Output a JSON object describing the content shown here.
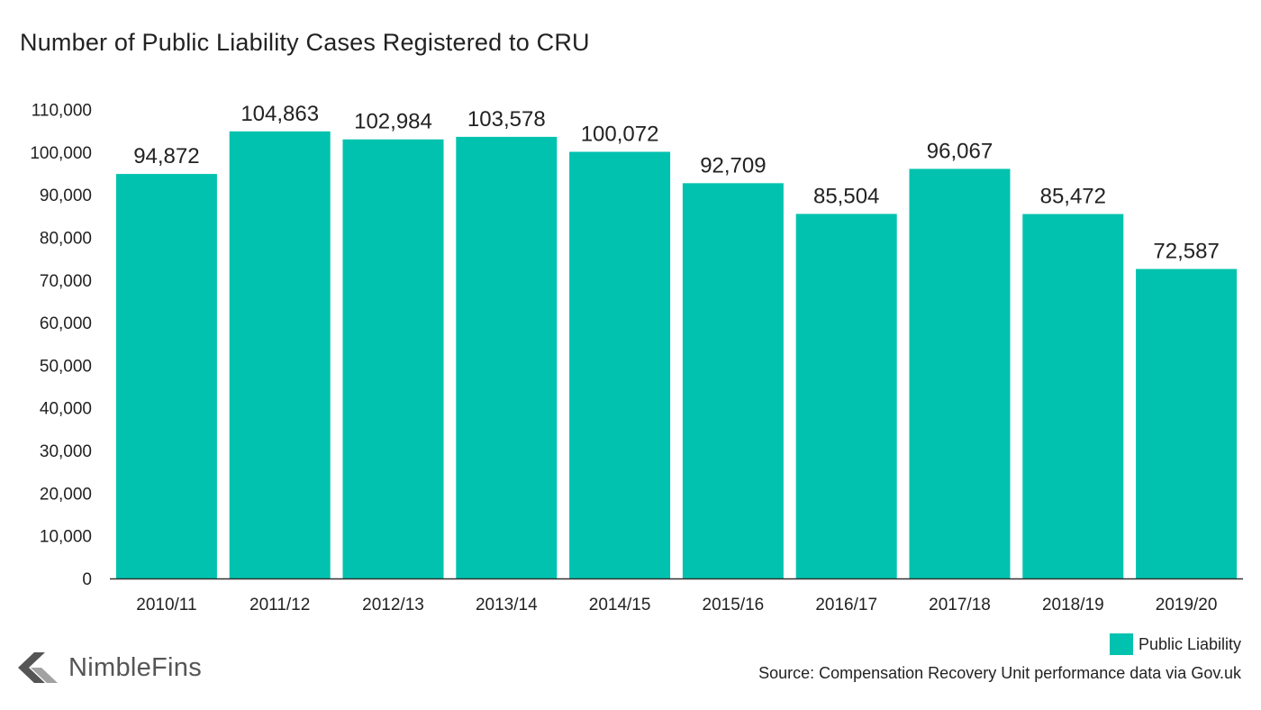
{
  "title": "Number of Public Liability Cases Registered to CRU",
  "colors": {
    "bar": "#00c2ae",
    "axis": "#333333",
    "text": "#222222",
    "logo": "#555555"
  },
  "legend": {
    "label": "Public Liability"
  },
  "source": "Source: Compensation Recovery Unit performance data via Gov.uk",
  "brand": {
    "name": "NimbleFins",
    "icon": "nimblefins-arrow-icon"
  },
  "chart_data": {
    "type": "bar",
    "title": "Number of Public Liability Cases Registered to CRU",
    "categories": [
      "2010/11",
      "2011/12",
      "2012/13",
      "2013/14",
      "2014/15",
      "2015/16",
      "2016/17",
      "2017/18",
      "2018/19",
      "2019/20"
    ],
    "series": [
      {
        "name": "Public Liability",
        "values": [
          94872,
          104863,
          102984,
          103578,
          100072,
          92709,
          85504,
          96067,
          85472,
          72587
        ]
      }
    ],
    "data_labels": [
      "94,872",
      "104,863",
      "102,984",
      "103,578",
      "100,072",
      "92,709",
      "85,504",
      "96,067",
      "85,472",
      "72,587"
    ],
    "y_ticks": [
      0,
      10000,
      20000,
      30000,
      40000,
      50000,
      60000,
      70000,
      80000,
      90000,
      100000,
      110000
    ],
    "y_tick_labels": [
      "0",
      "10,000",
      "20,000",
      "30,000",
      "40,000",
      "50,000",
      "60,000",
      "70,000",
      "80,000",
      "90,000",
      "100,000",
      "110,000"
    ],
    "ylim": [
      0,
      110000
    ],
    "xlabel": "",
    "ylabel": "",
    "grid": false,
    "legend_position": "bottom-right"
  }
}
